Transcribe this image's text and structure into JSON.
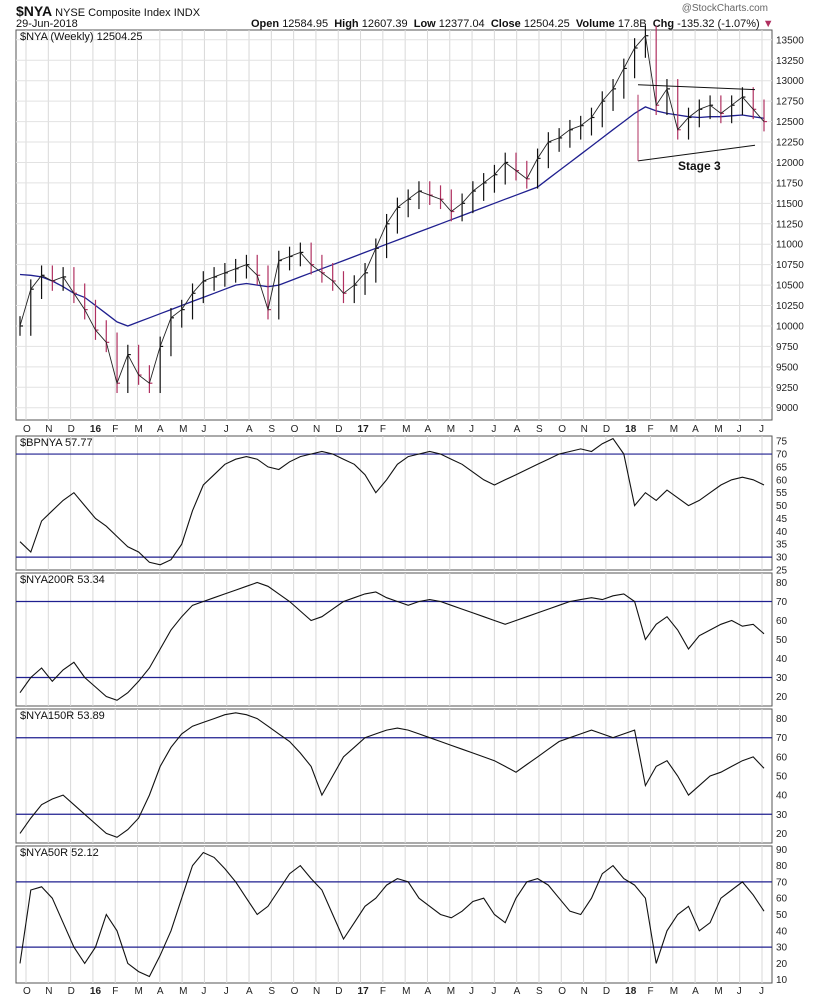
{
  "header": {
    "symbol": "$NYA",
    "name": "NYSE Composite Index",
    "exchange": "INDX",
    "date": "29-Jun-2018",
    "open_label": "Open",
    "open": "12584.95",
    "high_label": "High",
    "high": "12607.39",
    "low_label": "Low",
    "low": "12377.04",
    "close_label": "Close",
    "close": "12504.25",
    "volume_label": "Volume",
    "volume": "17.8B",
    "chg_label": "Chg",
    "chg": "-135.32 (-1.07%)",
    "watermark": "@StockCharts.com"
  },
  "chart_data": [
    {
      "type": "line",
      "title": "$NYA (Weekly) 12504.25",
      "ylim": [
        8850,
        13620
      ],
      "yticks": [
        9000,
        9250,
        9500,
        9750,
        10000,
        10250,
        10500,
        10750,
        11000,
        11250,
        11500,
        11750,
        12000,
        12250,
        12500,
        12750,
        13000,
        13250,
        13500
      ],
      "x_labels": [
        "O",
        "N",
        "D",
        "16",
        "F",
        "M",
        "A",
        "M",
        "J",
        "J",
        "A",
        "S",
        "O",
        "N",
        "D",
        "17",
        "F",
        "M",
        "A",
        "M",
        "J",
        "J",
        "A",
        "S",
        "O",
        "N",
        "D",
        "18",
        "F",
        "M",
        "A",
        "M",
        "J",
        "J"
      ],
      "bold_labels": [
        "16",
        "17",
        "18"
      ],
      "annotation": "Stage 3",
      "price_path": [
        10000,
        10450,
        10620,
        10550,
        10600,
        10400,
        10200,
        9950,
        9800,
        9300,
        9650,
        9400,
        9300,
        9750,
        10100,
        10200,
        10400,
        10550,
        10600,
        10650,
        10700,
        10750,
        10620,
        10200,
        10800,
        10850,
        10900,
        10750,
        10650,
        10550,
        10400,
        10500,
        10650,
        10950,
        11250,
        11450,
        11550,
        11650,
        11600,
        11550,
        11400,
        11500,
        11650,
        11750,
        11850,
        12000,
        11900,
        11800,
        12050,
        12250,
        12300,
        12400,
        12450,
        12550,
        12750,
        12900,
        13150,
        13400,
        13550,
        12700,
        12900,
        12400,
        12550,
        12650,
        12700,
        12600,
        12700,
        12800,
        12650,
        12500
      ],
      "ma_path": [
        10630,
        10620,
        10600,
        10550,
        10480,
        10400,
        10350,
        10250,
        10150,
        10050,
        10000,
        10050,
        10100,
        10150,
        10200,
        10250,
        10300,
        10350,
        10400,
        10450,
        10500,
        10520,
        10500,
        10480,
        10500,
        10550,
        10600,
        10650,
        10700,
        10750,
        10800,
        10850,
        10900,
        10950,
        11000,
        11050,
        11100,
        11150,
        11200,
        11250,
        11300,
        11350,
        11400,
        11450,
        11500,
        11550,
        11600,
        11650,
        11700,
        11800,
        11900,
        12000,
        12100,
        12200,
        12300,
        12400,
        12500,
        12600,
        12680,
        12630,
        12600,
        12580,
        12560,
        12550,
        12560,
        12560,
        12570,
        12580,
        12560,
        12540
      ],
      "trendline_top": [
        [
          12950,
          0
        ],
        [
          12890,
          1
        ]
      ],
      "trendline_bottom": [
        [
          12020,
          0
        ],
        [
          12210,
          1
        ]
      ]
    },
    {
      "type": "line",
      "title": "$BPNYA 57.77",
      "ylim": [
        25,
        77
      ],
      "yticks": [
        25,
        30,
        35,
        40,
        45,
        50,
        55,
        60,
        65,
        70,
        75
      ],
      "hlines": [
        30,
        70
      ],
      "values": [
        36,
        32,
        44,
        48,
        52,
        55,
        50,
        45,
        42,
        38,
        34,
        32,
        28,
        27,
        29,
        35,
        48,
        58,
        62,
        66,
        68,
        69,
        68,
        65,
        64,
        67,
        69,
        70,
        71,
        70,
        68,
        66,
        62,
        55,
        60,
        66,
        69,
        70,
        71,
        70,
        68,
        66,
        63,
        60,
        58,
        60,
        62,
        64,
        66,
        68,
        70,
        71,
        72,
        71,
        74,
        76,
        70,
        50,
        55,
        52,
        56,
        53,
        50,
        52,
        55,
        58,
        60,
        61,
        60,
        58
      ]
    },
    {
      "type": "line",
      "title": "$NYA200R 53.34",
      "ylim": [
        15,
        85
      ],
      "yticks": [
        20,
        30,
        40,
        50,
        60,
        70,
        80
      ],
      "hlines": [
        30,
        70
      ],
      "values": [
        22,
        30,
        35,
        28,
        34,
        38,
        30,
        25,
        20,
        18,
        22,
        28,
        35,
        45,
        55,
        62,
        68,
        70,
        72,
        74,
        76,
        78,
        80,
        78,
        74,
        70,
        65,
        60,
        62,
        66,
        70,
        72,
        74,
        75,
        72,
        70,
        68,
        70,
        71,
        70,
        68,
        66,
        64,
        62,
        60,
        58,
        60,
        62,
        64,
        66,
        68,
        70,
        71,
        72,
        71,
        73,
        74,
        70,
        50,
        58,
        62,
        55,
        45,
        52,
        55,
        58,
        60,
        57,
        58,
        53
      ]
    },
    {
      "type": "line",
      "title": "$NYA150R 53.89",
      "ylim": [
        15,
        85
      ],
      "yticks": [
        20,
        30,
        40,
        50,
        60,
        70,
        80
      ],
      "hlines": [
        30,
        70
      ],
      "values": [
        20,
        28,
        35,
        38,
        40,
        35,
        30,
        25,
        20,
        18,
        22,
        28,
        40,
        55,
        65,
        72,
        76,
        78,
        80,
        82,
        83,
        82,
        80,
        76,
        72,
        68,
        62,
        55,
        40,
        50,
        60,
        65,
        70,
        72,
        74,
        75,
        74,
        72,
        70,
        68,
        66,
        64,
        62,
        60,
        58,
        55,
        52,
        56,
        60,
        64,
        68,
        70,
        72,
        74,
        72,
        70,
        72,
        74,
        45,
        55,
        58,
        50,
        40,
        45,
        50,
        52,
        55,
        58,
        60,
        54
      ]
    },
    {
      "type": "line",
      "title": "$NYA50R 52.12",
      "ylim": [
        8,
        92
      ],
      "yticks": [
        10,
        20,
        30,
        40,
        50,
        60,
        70,
        80,
        90
      ],
      "hlines": [
        30,
        70
      ],
      "values": [
        20,
        65,
        67,
        60,
        45,
        30,
        20,
        30,
        50,
        40,
        20,
        15,
        12,
        25,
        40,
        60,
        80,
        88,
        85,
        78,
        70,
        60,
        50,
        55,
        65,
        75,
        80,
        72,
        65,
        50,
        35,
        45,
        55,
        60,
        68,
        72,
        70,
        60,
        55,
        50,
        48,
        52,
        58,
        60,
        50,
        45,
        60,
        70,
        72,
        68,
        60,
        52,
        50,
        60,
        75,
        80,
        72,
        68,
        60,
        20,
        40,
        50,
        55,
        40,
        45,
        60,
        65,
        70,
        62,
        52
      ]
    }
  ]
}
